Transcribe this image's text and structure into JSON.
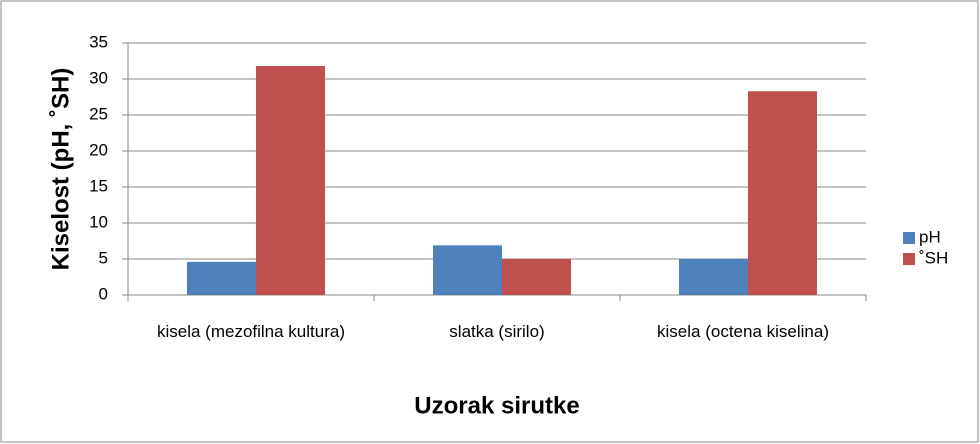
{
  "chart_data": {
    "type": "bar",
    "categories": [
      "kisela (mezofilna kultura)",
      "slatka (sirilo)",
      "kisela (octena kiselina)"
    ],
    "series": [
      {
        "name": "pH",
        "color": "#4f81bd",
        "values": [
          4.6,
          6.9,
          5.0
        ]
      },
      {
        "name": "˚SH",
        "color": "#c0504d",
        "values": [
          31.8,
          5.0,
          28.3
        ]
      }
    ],
    "ylim": [
      0,
      35
    ],
    "yticks": [
      0,
      5,
      10,
      15,
      20,
      25,
      30,
      35
    ],
    "grid": true,
    "y_label": "Kiselost (pH, ˚SH)",
    "x_label": "Uzorak sirutke",
    "legend": "right"
  }
}
